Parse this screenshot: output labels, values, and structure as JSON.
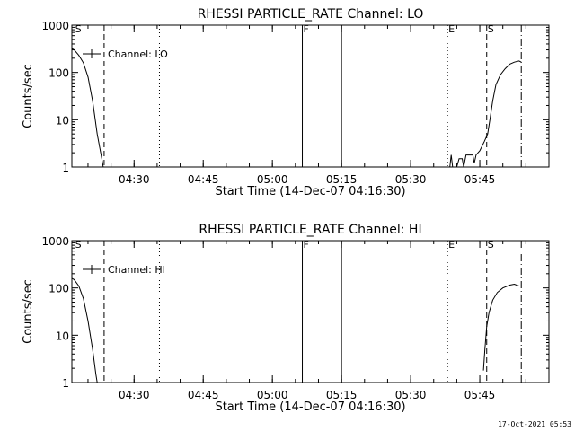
{
  "footer_timestamp": "17-Oct-2021 05:53",
  "chart_data": [
    {
      "type": "line",
      "title": "RHESSI PARTICLE_RATE Channel: LO",
      "xlabel": "Start Time (14-Dec-07 04:16:30)",
      "ylabel": "Counts/sec",
      "yscale": "log",
      "ylim": [
        1,
        1000
      ],
      "xlim_minutes": [
        0,
        103.5
      ],
      "grid": false,
      "legend": {
        "label": "Channel: LO",
        "placement": "top-left"
      },
      "y_ticks": [
        {
          "value": 1,
          "label": "1"
        },
        {
          "value": 10,
          "label": "10"
        },
        {
          "value": 100,
          "label": "100"
        },
        {
          "value": 1000,
          "label": "1000"
        }
      ],
      "x_ticks": [
        {
          "minute": 13.5,
          "label": "04:30"
        },
        {
          "minute": 28.5,
          "label": "04:45"
        },
        {
          "minute": 43.5,
          "label": "05:00"
        },
        {
          "minute": 58.5,
          "label": "05:15"
        },
        {
          "minute": 73.5,
          "label": "05:30"
        },
        {
          "minute": 88.5,
          "label": "05:45"
        }
      ],
      "markers": [
        {
          "minute": 0.5,
          "style": "none",
          "label": "S"
        },
        {
          "minute": 7.0,
          "style": "dashed",
          "label": ""
        },
        {
          "minute": 19.0,
          "style": "dotted",
          "label": ""
        },
        {
          "minute": 50.0,
          "style": "solid",
          "label": "F"
        },
        {
          "minute": 58.5,
          "style": "solid",
          "label": ""
        },
        {
          "minute": 81.5,
          "style": "dotted",
          "label": "E"
        },
        {
          "minute": 90.0,
          "style": "dashed",
          "label": "S"
        },
        {
          "minute": 97.5,
          "style": "dashdot",
          "label": ""
        }
      ],
      "series": [
        {
          "segments": [
            [
              [
                0,
                320
              ],
              [
                0.5,
                300
              ],
              [
                1.5,
                230
              ],
              [
                2.5,
                160
              ],
              [
                3.5,
                80
              ],
              [
                4.5,
                25
              ],
              [
                5.5,
                5
              ],
              [
                6.5,
                1.5
              ],
              [
                6.8,
                1
              ]
            ],
            [
              [
                82,
                1
              ],
              [
                82.3,
                1.8
              ],
              [
                82.6,
                1
              ]
            ],
            [
              [
                83.5,
                1
              ],
              [
                84,
                1.5
              ],
              [
                84.7,
                1.5
              ],
              [
                85,
                1
              ],
              [
                85.5,
                1.8
              ],
              [
                87,
                1.8
              ],
              [
                87.3,
                1.2
              ],
              [
                87.7,
                1.8
              ],
              [
                88.5,
                2.2
              ],
              [
                89.5,
                3.5
              ],
              [
                90.2,
                5
              ],
              [
                90.7,
                10
              ],
              [
                91.3,
                25
              ],
              [
                92,
                55
              ],
              [
                93,
                90
              ],
              [
                94,
                120
              ],
              [
                95,
                150
              ],
              [
                96,
                165
              ],
              [
                97,
                175
              ],
              [
                97.5,
                165
              ]
            ]
          ]
        }
      ]
    },
    {
      "type": "line",
      "title": "RHESSI PARTICLE_RATE Channel: HI",
      "xlabel": "Start Time (14-Dec-07 04:16:30)",
      "ylabel": "Counts/sec",
      "yscale": "log",
      "ylim": [
        1,
        1000
      ],
      "xlim_minutes": [
        0,
        103.5
      ],
      "grid": false,
      "legend": {
        "label": "Channel: HI",
        "placement": "top-left"
      },
      "y_ticks": [
        {
          "value": 1,
          "label": "1"
        },
        {
          "value": 10,
          "label": "10"
        },
        {
          "value": 100,
          "label": "100"
        },
        {
          "value": 1000,
          "label": "1000"
        }
      ],
      "x_ticks": [
        {
          "minute": 13.5,
          "label": "04:30"
        },
        {
          "minute": 28.5,
          "label": "04:45"
        },
        {
          "minute": 43.5,
          "label": "05:00"
        },
        {
          "minute": 58.5,
          "label": "05:15"
        },
        {
          "minute": 73.5,
          "label": "05:30"
        },
        {
          "minute": 88.5,
          "label": "05:45"
        }
      ],
      "markers": [
        {
          "minute": 0.5,
          "style": "none",
          "label": "S"
        },
        {
          "minute": 7.0,
          "style": "dashed",
          "label": ""
        },
        {
          "minute": 19.0,
          "style": "dotted",
          "label": ""
        },
        {
          "minute": 50.0,
          "style": "solid",
          "label": "F"
        },
        {
          "minute": 58.5,
          "style": "solid",
          "label": ""
        },
        {
          "minute": 81.5,
          "style": "dotted",
          "label": "E"
        },
        {
          "minute": 90.0,
          "style": "dashed",
          "label": "S"
        },
        {
          "minute": 97.5,
          "style": "dashdot",
          "label": ""
        }
      ],
      "series": [
        {
          "segments": [
            [
              [
                0,
                160
              ],
              [
                0.5,
                150
              ],
              [
                1.5,
                110
              ],
              [
                2.5,
                60
              ],
              [
                3.5,
                20
              ],
              [
                4.5,
                5
              ],
              [
                5.2,
                1.5
              ],
              [
                5.5,
                1
              ]
            ],
            [
              [
                89.3,
                1.8
              ],
              [
                89.6,
                5
              ],
              [
                90,
                15
              ],
              [
                90.5,
                30
              ],
              [
                91.3,
                55
              ],
              [
                92.3,
                80
              ],
              [
                93.5,
                100
              ],
              [
                95,
                115
              ],
              [
                96,
                120
              ],
              [
                97,
                110
              ]
            ]
          ]
        }
      ]
    }
  ]
}
